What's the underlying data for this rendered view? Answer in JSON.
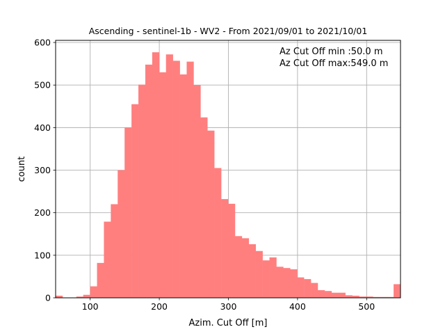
{
  "chart_data": {
    "type": "bar",
    "title": "Ascending - sentinel-1b - WV2 - From 2021/09/01 to 2021/10/01",
    "xlabel": "Azim. Cut Off [m]",
    "ylabel": "count",
    "xlim": [
      50,
      549
    ],
    "ylim": [
      0,
      605
    ],
    "xticks": [
      100,
      200,
      300,
      400,
      500
    ],
    "yticks": [
      0,
      100,
      200,
      300,
      400,
      500,
      600
    ],
    "grid": true,
    "bar_color": "#ff7f7f",
    "annotations": [
      "Az Cut Off min :50.0 m",
      "Az Cut Off max:549.0 m"
    ],
    "bins": {
      "start": 50.0,
      "width": 9.98,
      "counts": [
        5,
        0,
        0,
        3,
        7,
        27,
        82,
        179,
        220,
        300,
        400,
        455,
        501,
        548,
        577,
        530,
        572,
        557,
        525,
        555,
        500,
        424,
        393,
        305,
        232,
        221,
        145,
        140,
        126,
        110,
        88,
        95,
        73,
        70,
        67,
        48,
        44,
        35,
        18,
        16,
        12,
        12,
        6,
        5,
        3,
        3,
        2,
        2,
        2,
        32
      ]
    }
  }
}
